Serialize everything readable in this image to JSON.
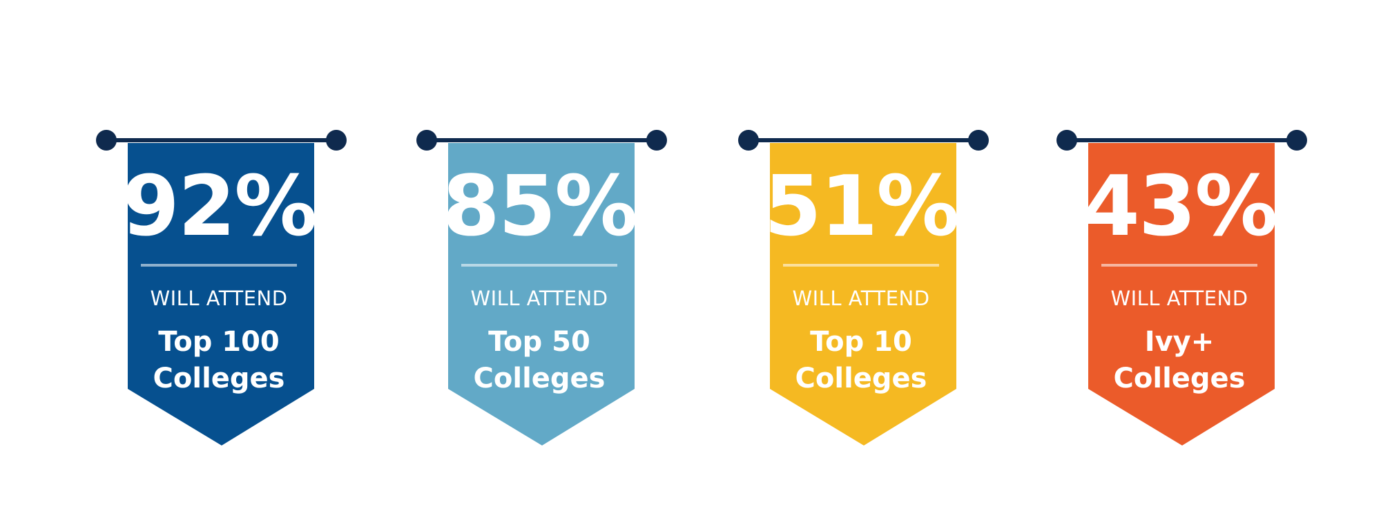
{
  "banners": [
    {
      "percent": "92%",
      "label": "WILL ATTEND",
      "tier_line1": "Top 100",
      "tier_line2": "Colleges",
      "color": "#06508F"
    },
    {
      "percent": "85%",
      "label": "WILL ATTEND",
      "tier_line1": "Top 50",
      "tier_line2": "Colleges",
      "color": "#62A9C7"
    },
    {
      "percent": "51%",
      "label": "WILL ATTEND",
      "tier_line1": "Top 10",
      "tier_line2": "Colleges",
      "color": "#F5B922"
    },
    {
      "percent": "43%",
      "label": "WILL ATTEND",
      "tier_line1": "Ivy+",
      "tier_line2": "Colleges",
      "color": "#EB5B2A"
    }
  ],
  "rod_color": "#0F2A4E"
}
